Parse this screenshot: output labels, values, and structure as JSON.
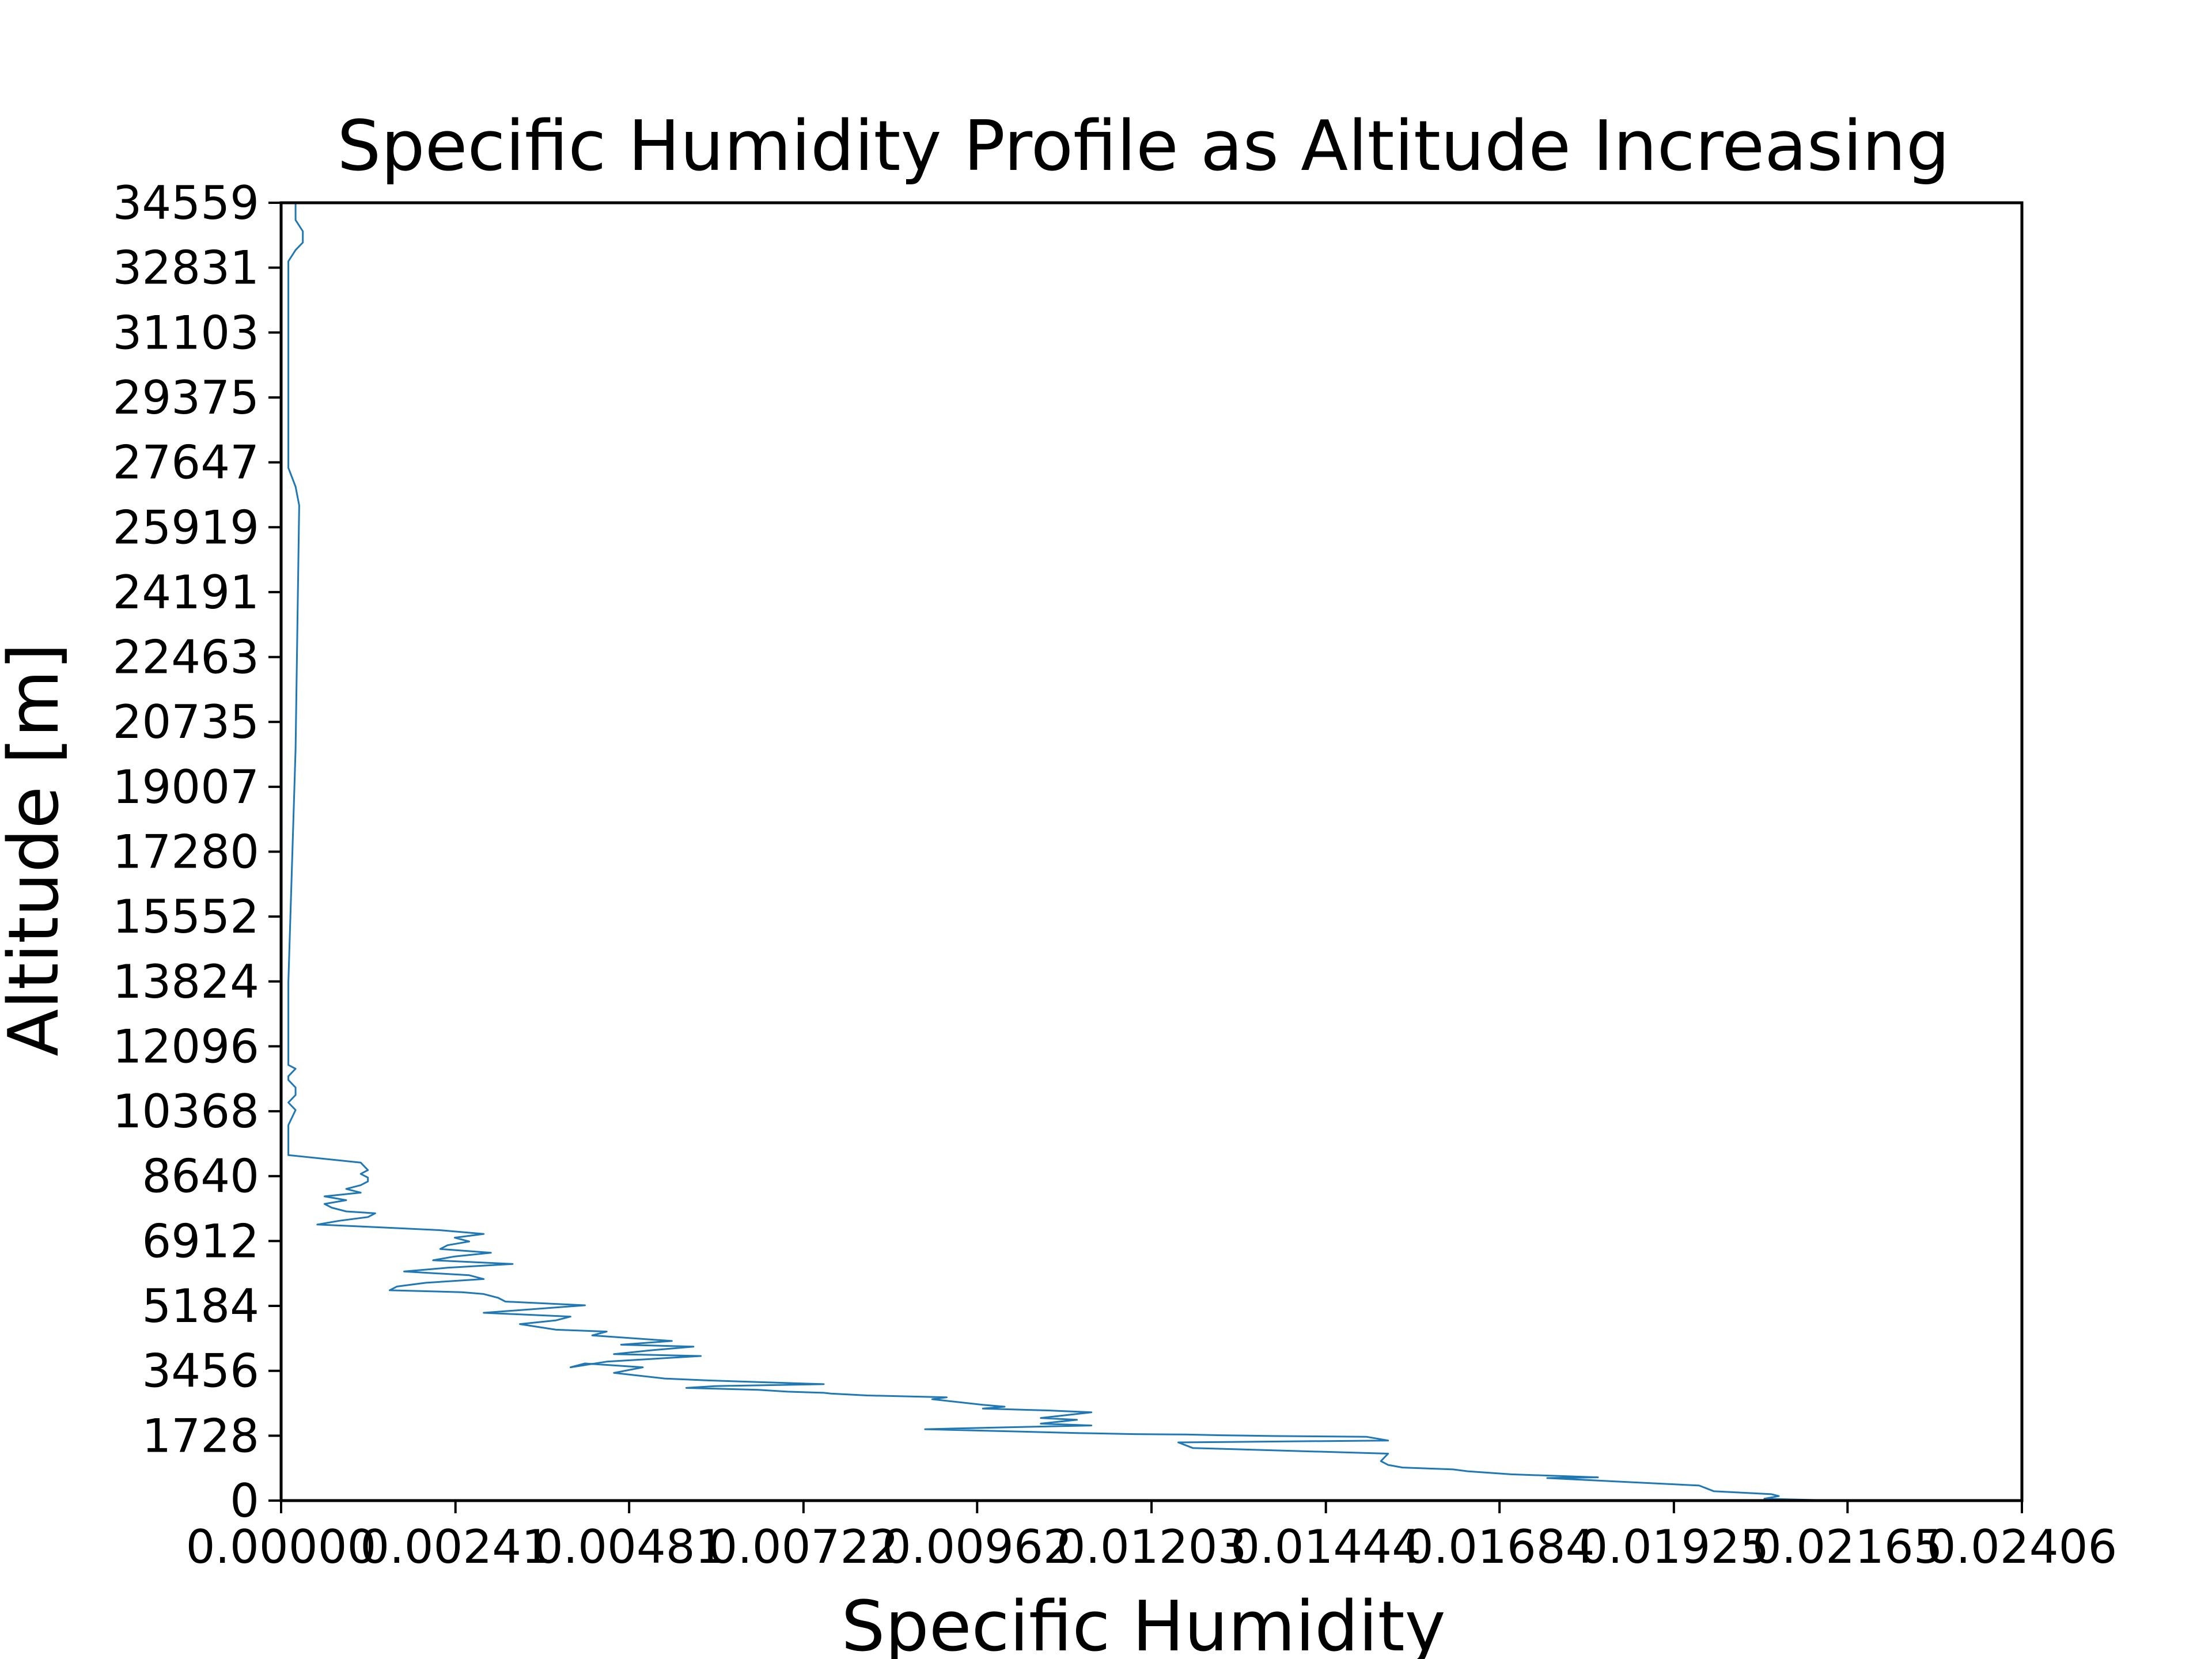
{
  "chart_data": {
    "type": "line",
    "title": "Specific Humidity Profile as Altitude Increasing",
    "xlabel": "Specific Humidity",
    "ylabel": "Altitude [m]",
    "xlim": [
      0.0,
      0.02406
    ],
    "ylim": [
      0,
      34559
    ],
    "grid": false,
    "line_color": "#1f77b4",
    "x_ticks": [
      {
        "value": 0.0,
        "label": "0.00000"
      },
      {
        "value": 0.00241,
        "label": "0.00241"
      },
      {
        "value": 0.00481,
        "label": "0.00481"
      },
      {
        "value": 0.00722,
        "label": "0.00722"
      },
      {
        "value": 0.00962,
        "label": "0.00962"
      },
      {
        "value": 0.01203,
        "label": "0.01203"
      },
      {
        "value": 0.01444,
        "label": "0.01444"
      },
      {
        "value": 0.01684,
        "label": "0.01684"
      },
      {
        "value": 0.01925,
        "label": "0.01925"
      },
      {
        "value": 0.02165,
        "label": "0.02165"
      },
      {
        "value": 0.02406,
        "label": "0.02406"
      }
    ],
    "y_ticks": [
      {
        "value": 0,
        "label": "0"
      },
      {
        "value": 1728,
        "label": "1728"
      },
      {
        "value": 3456,
        "label": "3456"
      },
      {
        "value": 5184,
        "label": "5184"
      },
      {
        "value": 6912,
        "label": "6912"
      },
      {
        "value": 8640,
        "label": "8640"
      },
      {
        "value": 10368,
        "label": "10368"
      },
      {
        "value": 12096,
        "label": "12096"
      },
      {
        "value": 13824,
        "label": "13824"
      },
      {
        "value": 15552,
        "label": "15552"
      },
      {
        "value": 17280,
        "label": "17280"
      },
      {
        "value": 19007,
        "label": "19007"
      },
      {
        "value": 20735,
        "label": "20735"
      },
      {
        "value": 22463,
        "label": "22463"
      },
      {
        "value": 24191,
        "label": "24191"
      },
      {
        "value": 25919,
        "label": "25919"
      },
      {
        "value": 27647,
        "label": "27647"
      },
      {
        "value": 29375,
        "label": "29375"
      },
      {
        "value": 31103,
        "label": "31103"
      },
      {
        "value": 32831,
        "label": "32831"
      },
      {
        "value": 34559,
        "label": "34559"
      }
    ],
    "series": [
      {
        "x": [
          0.0215,
          0.0205,
          0.0207,
          0.0206,
          0.0198,
          0.0196,
          0.0175,
          0.0182,
          0.017,
          0.0164,
          0.0162,
          0.0155,
          0.0153,
          0.0152,
          0.0153,
          0.0126,
          0.0124,
          0.0153,
          0.015,
          0.0137,
          0.013,
          0.0125,
          0.0118,
          0.011,
          0.0089,
          0.01,
          0.0112,
          0.0105,
          0.011,
          0.0105,
          0.0112,
          0.0106,
          0.0097,
          0.01,
          0.0097,
          0.009,
          0.0092,
          0.0081,
          0.0076,
          0.0075,
          0.007,
          0.0066,
          0.0056,
          0.006,
          0.0075,
          0.0059,
          0.0053,
          0.0046,
          0.005,
          0.0042,
          0.004,
          0.0045,
          0.0058,
          0.0046,
          0.0051,
          0.0057,
          0.0047,
          0.0054,
          0.0043,
          0.0045,
          0.0038,
          0.0033,
          0.0038,
          0.004,
          0.0028,
          0.0042,
          0.0031,
          0.003,
          0.0028,
          0.0025,
          0.0015,
          0.0016,
          0.002,
          0.0028,
          0.0026,
          0.0017,
          0.0023,
          0.0032,
          0.0021,
          0.0024,
          0.0029,
          0.0022,
          0.0023,
          0.0026,
          0.0024,
          0.0028,
          0.0022,
          0.0011,
          0.0005,
          0.0008,
          0.0012,
          0.0013,
          0.0009,
          0.0007,
          0.0006,
          0.0009,
          0.0006,
          0.0011,
          0.0009,
          0.0011,
          0.0012,
          0.0012,
          0.0011,
          0.0012,
          0.0011,
          0.0001,
          0.0001,
          0.0001,
          0.0001,
          0.0001,
          0.0002,
          0.0001,
          0.0002,
          0.0002,
          0.0001,
          0.0001,
          0.0002,
          0.0001,
          0.0001,
          0.0001,
          0.0001,
          0.0001,
          0.0001,
          0.0001,
          0.0001,
          0.0001,
          0.0002,
          0.00025,
          0.0002,
          0.0001,
          0.0001,
          0.0001,
          0.0001,
          0.0001,
          0.0001,
          0.0001,
          0.0001,
          0.0001,
          0.0001,
          0.0001,
          0.0001,
          0.0002,
          0.0003,
          0.0003,
          0.0002,
          0.0002,
          0.0002
        ],
        "y": [
          0,
          50,
          120,
          170,
          250,
          400,
          600,
          620,
          700,
          780,
          830,
          880,
          950,
          1050,
          1250,
          1400,
          1550,
          1600,
          1700,
          1720,
          1740,
          1760,
          1770,
          1800,
          1900,
          1950,
          2000,
          2050,
          2150,
          2200,
          2350,
          2400,
          2450,
          2500,
          2550,
          2700,
          2750,
          2800,
          2850,
          2870,
          2900,
          2950,
          3000,
          3050,
          3100,
          3200,
          3250,
          3400,
          3550,
          3650,
          3550,
          3700,
          3850,
          3900,
          4000,
          4100,
          4150,
          4250,
          4400,
          4500,
          4550,
          4700,
          4800,
          4900,
          5000,
          5200,
          5300,
          5400,
          5500,
          5550,
          5600,
          5700,
          5800,
          5900,
          6000,
          6100,
          6200,
          6300,
          6400,
          6500,
          6600,
          6700,
          6800,
          6900,
          7000,
          7100,
          7200,
          7300,
          7350,
          7450,
          7550,
          7650,
          7700,
          7800,
          7900,
          8000,
          8100,
          8200,
          8300,
          8400,
          8500,
          8600,
          8700,
          8800,
          9000,
          9200,
          9300,
          9500,
          9800,
          10000,
          10400,
          10600,
          10800,
          11000,
          11200,
          11300,
          11500,
          11600,
          11800,
          12000,
          12200,
          12400,
          12600,
          13000,
          13400,
          13800,
          20000,
          26500,
          27000,
          27500,
          28000,
          28500,
          29000,
          29500,
          30000,
          30500,
          31000,
          31500,
          32000,
          32500,
          33000,
          33300,
          33500,
          33800,
          34100,
          34400,
          34559
        ]
      }
    ]
  }
}
